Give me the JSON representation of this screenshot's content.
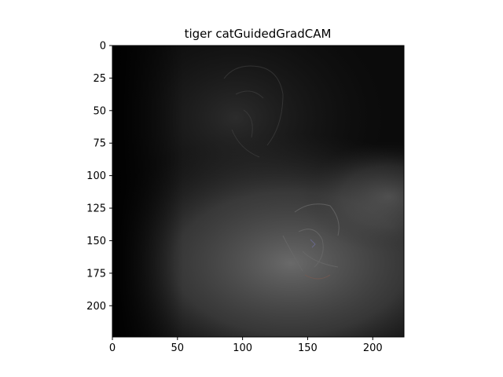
{
  "chart_data": {
    "type": "heatmap",
    "title": "tiger catGuidedGradCAM",
    "xlabel": "",
    "ylabel": "",
    "xlim": [
      0,
      224
    ],
    "ylim": [
      224,
      0
    ],
    "xticks": [
      0,
      50,
      100,
      150,
      200
    ],
    "yticks": [
      0,
      25,
      50,
      75,
      100,
      125,
      150,
      175,
      200
    ],
    "grid": false,
    "image_description_colors": {
      "background": "#000000",
      "highlight": "#5a5a5a"
    }
  }
}
